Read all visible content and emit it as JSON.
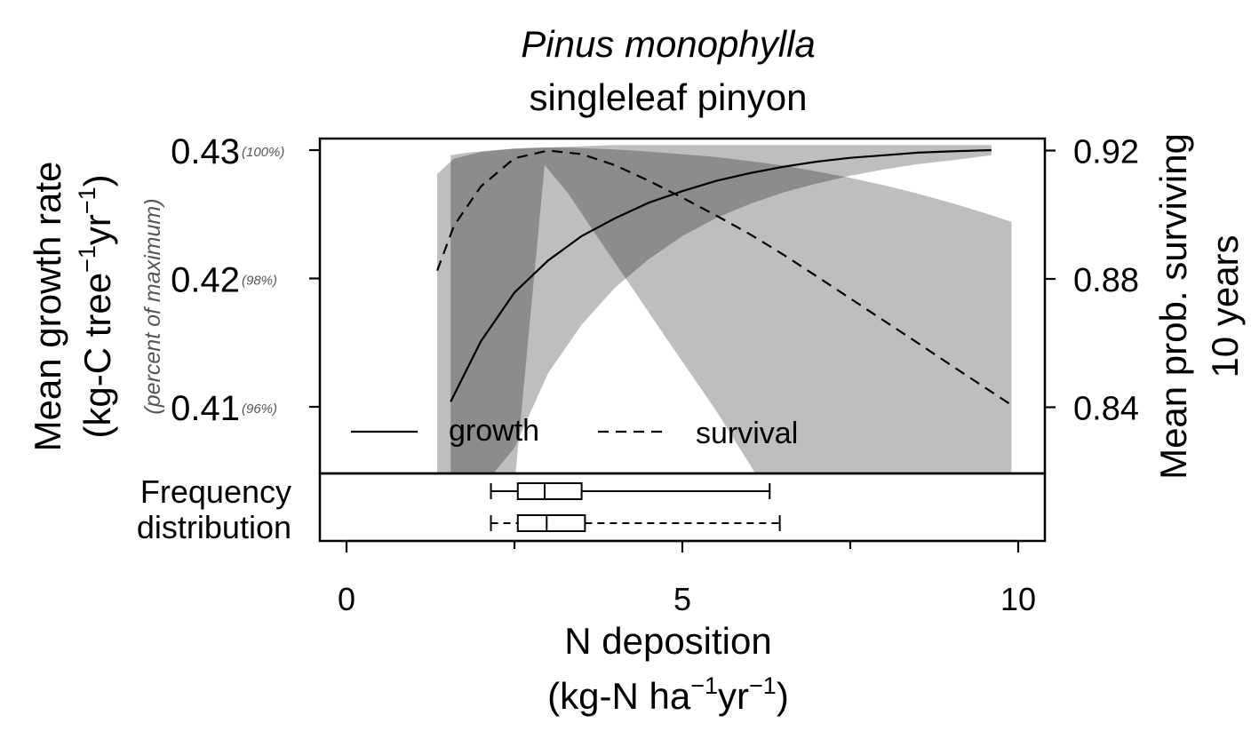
{
  "title": {
    "species": "Pinus monophylla",
    "common_name": "singleleaf pinyon"
  },
  "axes": {
    "left_label_line1": "Mean growth rate",
    "left_label_line2_prefix": "(kg-C tree",
    "left_label_line2_mid": "yr",
    "left_label_line2_suffix": ")",
    "left_sub_label": "(percent of maximum)",
    "right_label_line1": "Mean prob. surviving",
    "right_label_line2": "10 years",
    "x_label_line1": "N deposition",
    "x_label_line2_prefix": "(kg-N ha",
    "x_label_line2_mid": "yr",
    "x_label_line2_suffix": ")",
    "superscript": "−1",
    "left_ticks": [
      {
        "value": 0.43,
        "label": "0.43",
        "pct": "(100%)"
      },
      {
        "value": 0.42,
        "label": "0.42",
        "pct": "(98%)"
      },
      {
        "value": 0.41,
        "label": "0.41",
        "pct": "(96%)"
      }
    ],
    "right_ticks": [
      {
        "value": 0.92,
        "label": "0.92"
      },
      {
        "value": 0.88,
        "label": "0.88"
      },
      {
        "value": 0.84,
        "label": "0.84"
      }
    ],
    "x_ticks": [
      {
        "value": 0,
        "label": "0"
      },
      {
        "value": 5,
        "label": "5"
      },
      {
        "value": 10,
        "label": "10"
      }
    ],
    "x_minor_ticks": [
      2.5,
      7.5
    ],
    "freq_label_line1": "Frequency",
    "freq_label_line2": "distribution"
  },
  "legend": {
    "growth_label": "growth",
    "survival_label": "survival",
    "position": "bottom-left"
  },
  "colors": {
    "band": "#bebebe",
    "overlap": "#8c8c8c",
    "line": "#000000",
    "pct_text": "#555555"
  },
  "chart_data": {
    "type": "line",
    "xlim": [
      -0.4,
      10.4
    ],
    "ylim_growth": [
      0.4049,
      0.431
    ],
    "ylim_survival": [
      0.8156,
      0.9236
    ],
    "series": [
      {
        "name": "growth",
        "axis": "left",
        "style": "solid",
        "x": [
          1.55,
          2.0,
          2.5,
          3.0,
          3.5,
          4.0,
          4.5,
          5.0,
          5.5,
          6.0,
          6.5,
          7.0,
          7.5,
          8.0,
          8.5,
          9.0,
          9.6
        ],
        "y": [
          0.4104,
          0.4151,
          0.4189,
          0.4214,
          0.4233,
          0.4247,
          0.4259,
          0.4268,
          0.4276,
          0.4282,
          0.4287,
          0.4291,
          0.4294,
          0.4296,
          0.4298,
          0.4299,
          0.43
        ],
        "band_x": [
          1.55,
          1.8,
          2.0,
          2.2,
          2.5,
          3.0,
          3.5,
          4.0,
          4.5,
          5.0,
          5.5,
          6.0,
          6.5,
          7.0,
          7.5,
          8.0,
          8.5,
          9.0,
          9.6
        ],
        "band_upper": [
          0.4296,
          0.4298,
          0.4299,
          0.43,
          0.4301,
          0.4302,
          0.4303,
          0.4304,
          0.4304,
          0.4304,
          0.4304,
          0.4304,
          0.4304,
          0.4304,
          0.4304,
          0.4304,
          0.4304,
          0.4304,
          0.4304
        ],
        "band_lower": [
          0.4049,
          0.4049,
          0.4049,
          0.4049,
          0.4068,
          0.4126,
          0.4164,
          0.4193,
          0.4215,
          0.4233,
          0.4247,
          0.4258,
          0.4267,
          0.4274,
          0.428,
          0.4285,
          0.4289,
          0.4292,
          0.4296
        ]
      },
      {
        "name": "survival",
        "axis": "right",
        "style": "dashed",
        "x": [
          1.35,
          1.6,
          2.0,
          2.5,
          3.0,
          3.5,
          4.0,
          4.5,
          5.0,
          5.5,
          6.0,
          6.5,
          7.0,
          7.5,
          8.0,
          8.5,
          9.0,
          9.5,
          9.9
        ],
        "y": [
          0.8826,
          0.8966,
          0.9088,
          0.9176,
          0.92,
          0.9189,
          0.9154,
          0.9106,
          0.9053,
          0.8998,
          0.894,
          0.8876,
          0.8808,
          0.8739,
          0.867,
          0.8601,
          0.8531,
          0.8462,
          0.8407
        ],
        "band_x": [
          1.35,
          1.6,
          2.0,
          2.5,
          2.95,
          3.3,
          3.7,
          4.2,
          4.8,
          5.5,
          6.2,
          6.6,
          7.0,
          7.5,
          8.0,
          8.5,
          9.0,
          9.5,
          9.9
        ],
        "band_upper": [
          0.9127,
          0.9175,
          0.9195,
          0.9207,
          0.921,
          0.9209,
          0.9206,
          0.9201,
          0.9192,
          0.918,
          0.9162,
          0.915,
          0.9135,
          0.9115,
          0.9092,
          0.9066,
          0.9037,
          0.9005,
          0.8978
        ],
        "band_lower": [
          0.818,
          0.8156,
          0.8156,
          0.8156,
          0.9155,
          0.9066,
          0.8942,
          0.8788,
          0.8603,
          0.839,
          0.8156,
          0.8156,
          0.8156,
          0.8156,
          0.8156,
          0.8156,
          0.8156,
          0.8156,
          0.8156
        ]
      }
    ],
    "boxplots": [
      {
        "name": "growth",
        "style": "solid",
        "min": 2.15,
        "q1": 2.55,
        "median": 2.95,
        "q3": 3.5,
        "max": 6.3
      },
      {
        "name": "survival",
        "style": "dashed",
        "min": 2.15,
        "q1": 2.55,
        "median": 2.98,
        "q3": 3.55,
        "max": 6.45
      }
    ]
  }
}
